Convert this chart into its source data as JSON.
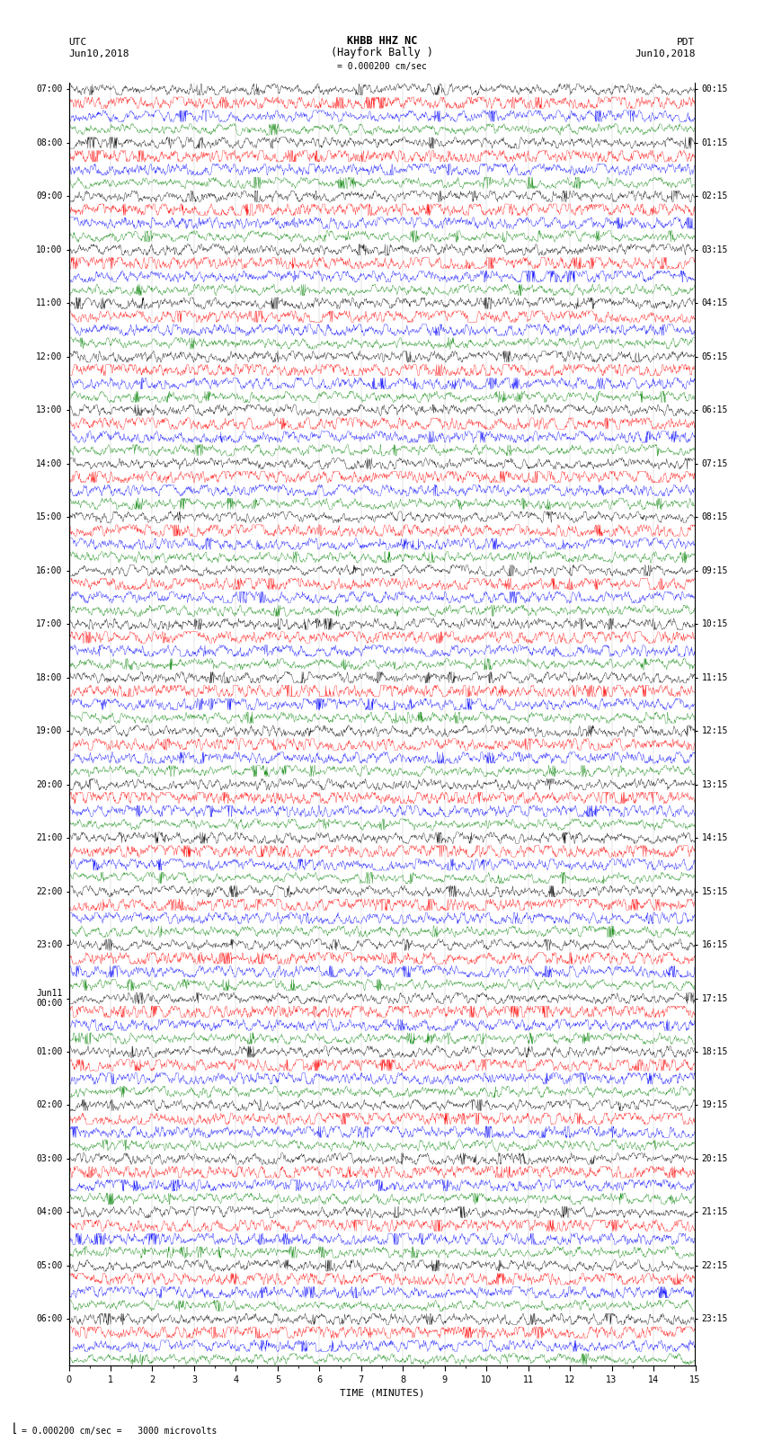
{
  "title_line1": "KHBB HHZ NC",
  "title_line2": "(Hayfork Bally )",
  "title_scale": "= 0.000200 cm/sec",
  "left_label": "UTC",
  "left_date": "Jun10,2018",
  "right_label": "PDT",
  "right_date": "Jun10,2018",
  "xlabel": "TIME (MINUTES)",
  "bottom_note": "= 0.000200 cm/sec =   3000 microvolts",
  "utc_hour_labels": [
    "07:00",
    "08:00",
    "09:00",
    "10:00",
    "11:00",
    "12:00",
    "13:00",
    "14:00",
    "15:00",
    "16:00",
    "17:00",
    "18:00",
    "19:00",
    "20:00",
    "21:00",
    "22:00",
    "23:00",
    "Jun11\n00:00",
    "01:00",
    "02:00",
    "03:00",
    "04:00",
    "05:00",
    "06:00"
  ],
  "pdt_hour_labels": [
    "00:15",
    "01:15",
    "02:15",
    "03:15",
    "04:15",
    "05:15",
    "06:15",
    "07:15",
    "08:15",
    "09:15",
    "10:15",
    "11:15",
    "12:15",
    "13:15",
    "14:15",
    "15:15",
    "16:15",
    "17:15",
    "18:15",
    "19:15",
    "20:15",
    "21:15",
    "22:15",
    "23:15"
  ],
  "trace_colors": [
    "black",
    "red",
    "blue",
    "green"
  ],
  "x_min": 0,
  "x_max": 15,
  "x_ticks": [
    0,
    1,
    2,
    3,
    4,
    5,
    6,
    7,
    8,
    9,
    10,
    11,
    12,
    13,
    14,
    15
  ],
  "bg_color": "white",
  "fig_width": 8.5,
  "fig_height": 16.13
}
